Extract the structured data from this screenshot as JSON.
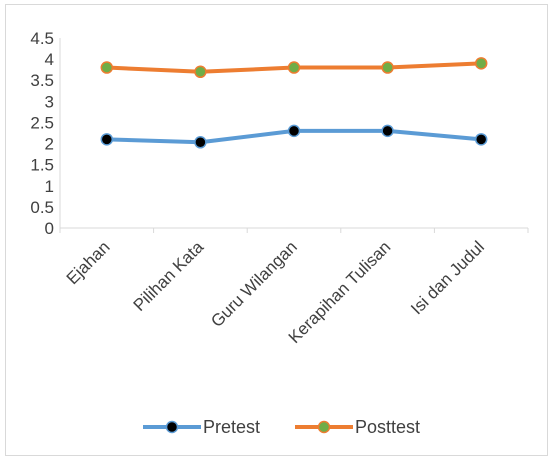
{
  "chart_data": {
    "type": "line",
    "categories": [
      "Ejahan",
      "Pilihan Kata",
      "Guru Wilangan",
      "Kerapihan Tulisan",
      "Isi dan Judul"
    ],
    "series": [
      {
        "name": "Pretest",
        "values": [
          2.1,
          2.03,
          2.3,
          2.3,
          2.1
        ],
        "color": "#5b9bd5",
        "marker_color": "#000000"
      },
      {
        "name": "Posttest",
        "values": [
          3.8,
          3.7,
          3.8,
          3.8,
          3.9
        ],
        "color": "#ed7d31",
        "marker_color": "#70ad47"
      }
    ],
    "ylim": [
      0,
      4.5
    ],
    "yticks": [
      "0",
      "0.5",
      "1",
      "1.5",
      "2",
      "2.5",
      "3",
      "3.5",
      "4",
      "4.5"
    ],
    "grid": false,
    "legend_position": "bottom",
    "title": "",
    "xlabel": "",
    "ylabel": ""
  }
}
